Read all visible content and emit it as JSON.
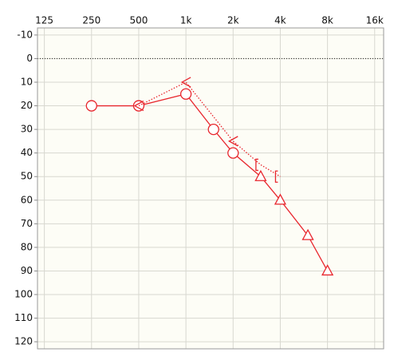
{
  "chart_data": {
    "type": "line",
    "xscale": "log",
    "xlim": [
      113,
      18250
    ],
    "ylim": [
      -13,
      123
    ],
    "xticks": [
      125,
      250,
      500,
      {
        "value": 1000,
        "label": "1k"
      },
      {
        "value": 2000,
        "label": "2k"
      },
      {
        "value": 4000,
        "label": "4k"
      },
      {
        "value": 8000,
        "label": "8k"
      },
      {
        "value": 16000,
        "label": "16k"
      }
    ],
    "yticks": [
      -10,
      0,
      10,
      20,
      30,
      40,
      50,
      60,
      70,
      80,
      90,
      100,
      110,
      120
    ],
    "grid": true,
    "reference_line": 0,
    "series": [
      {
        "color": "#e8262d",
        "dash": "solid",
        "x": [
          250,
          500,
          1000,
          1500,
          2000,
          3000,
          4000,
          6000,
          8000
        ],
        "values": [
          20,
          20,
          15,
          30,
          40,
          50,
          60,
          75,
          90
        ],
        "markers": [
          "circle",
          "circle",
          "circle",
          "circle",
          "circle",
          "triangle",
          "triangle",
          "triangle",
          "triangle"
        ]
      },
      {
        "color": "#e8262d",
        "dash": "dotted",
        "x": [
          500,
          1000,
          2000,
          3000,
          4000
        ],
        "values": [
          20,
          10,
          35,
          45,
          50
        ],
        "markers": [
          "chevron",
          "chevron",
          "chevron",
          "bracket",
          "bracket"
        ]
      }
    ]
  }
}
